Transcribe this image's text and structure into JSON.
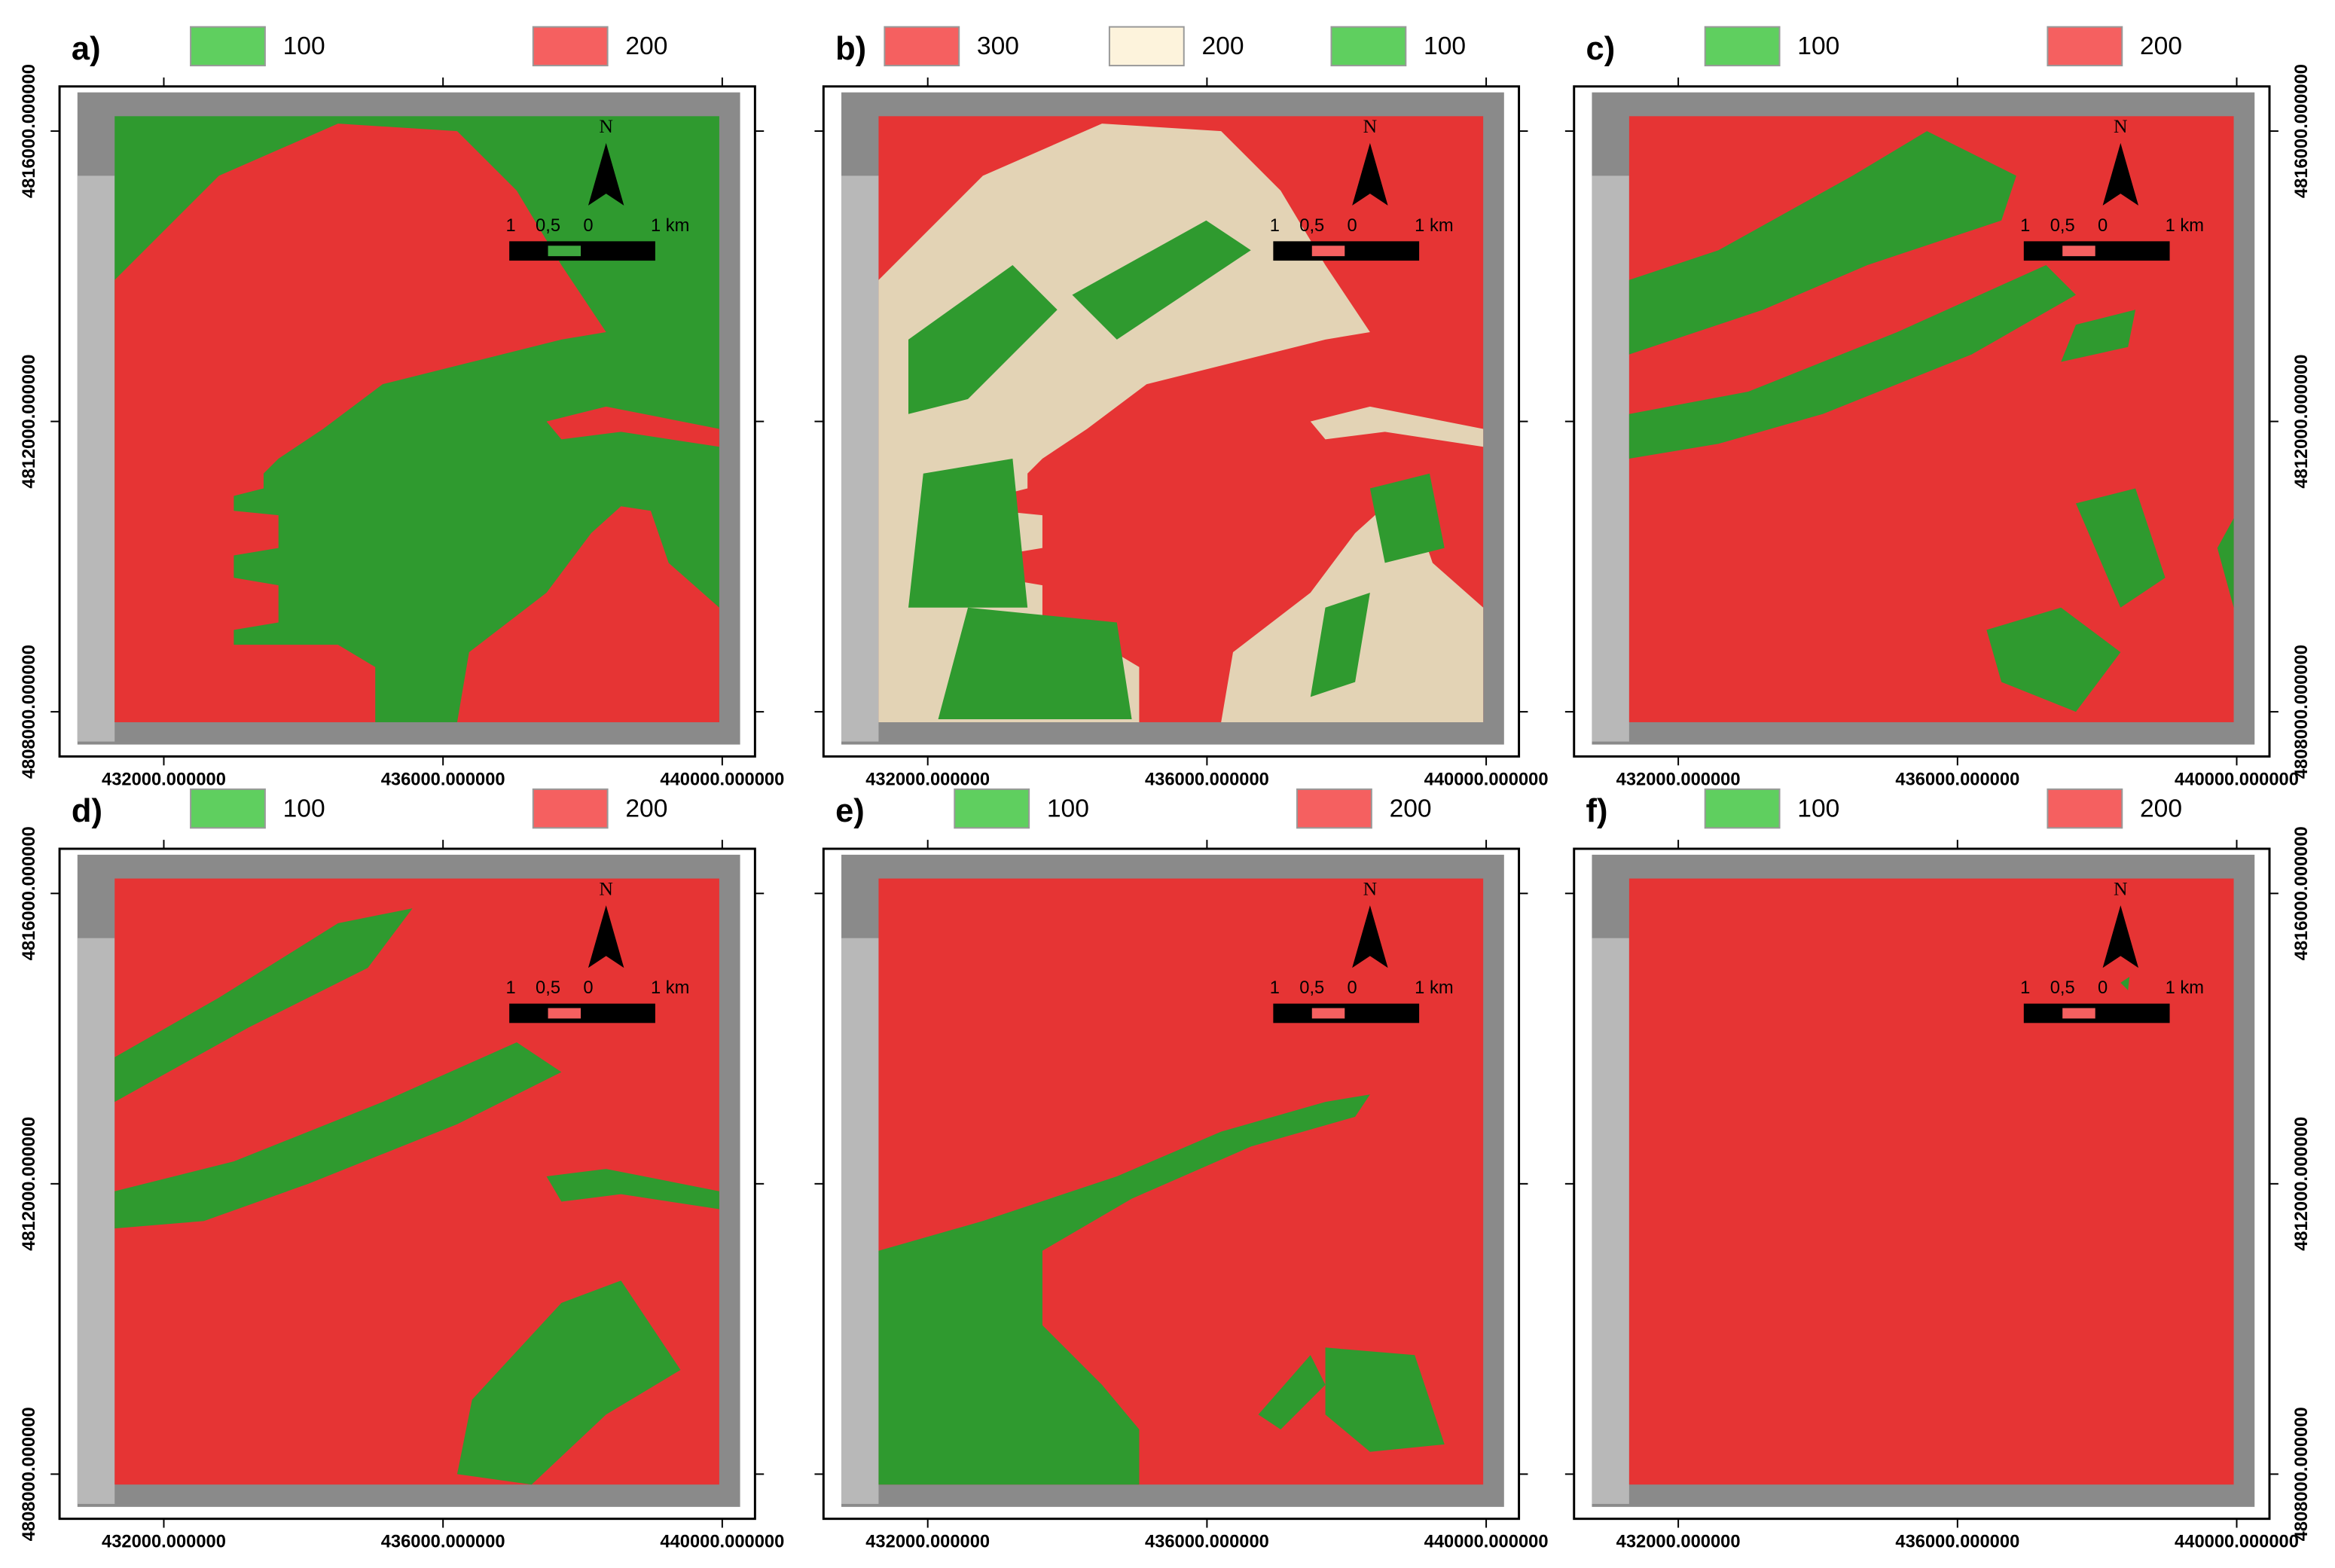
{
  "axes": {
    "xticks": [
      {
        "value": 432000,
        "label": "432000.000000"
      },
      {
        "value": 436000,
        "label": "436000.000000"
      },
      {
        "value": 440000,
        "label": "440000.000000"
      }
    ],
    "yticks": [
      {
        "value": 4816000,
        "label": "4816000.000000"
      },
      {
        "value": 4812000,
        "label": "4812000.000000"
      },
      {
        "value": 4808000,
        "label": "4808000.000000"
      }
    ]
  },
  "north": "N",
  "scale_labels": [
    "1",
    "0,5",
    "0",
    "1 km"
  ],
  "panels": [
    {
      "label": "a)",
      "y_axis_side": "left",
      "legend": [
        {
          "text": "100",
          "color": "#5fcf5f"
        },
        {
          "text": "200",
          "color": "#f56060"
        }
      ]
    },
    {
      "label": "b)",
      "y_axis_side": "none",
      "legend": [
        {
          "text": "300",
          "color": "#f56060"
        },
        {
          "text": "200",
          "color": "#fdf3dc"
        },
        {
          "text": "100",
          "color": "#5fcf5f"
        }
      ]
    },
    {
      "label": "c)",
      "y_axis_side": "right",
      "legend": [
        {
          "text": "100",
          "color": "#5fcf5f"
        },
        {
          "text": "200",
          "color": "#f56060"
        }
      ]
    },
    {
      "label": "d)",
      "y_axis_side": "left",
      "legend": [
        {
          "text": "100",
          "color": "#5fcf5f"
        },
        {
          "text": "200",
          "color": "#f56060"
        }
      ]
    },
    {
      "label": "e)",
      "y_axis_side": "none",
      "legend": [
        {
          "text": "100",
          "color": "#5fcf5f"
        },
        {
          "text": "200",
          "color": "#f56060"
        }
      ]
    },
    {
      "label": "f)",
      "y_axis_side": "right",
      "legend": [
        {
          "text": "100",
          "color": "#5fcf5f"
        },
        {
          "text": "200",
          "color": "#f56060"
        }
      ]
    }
  ]
}
